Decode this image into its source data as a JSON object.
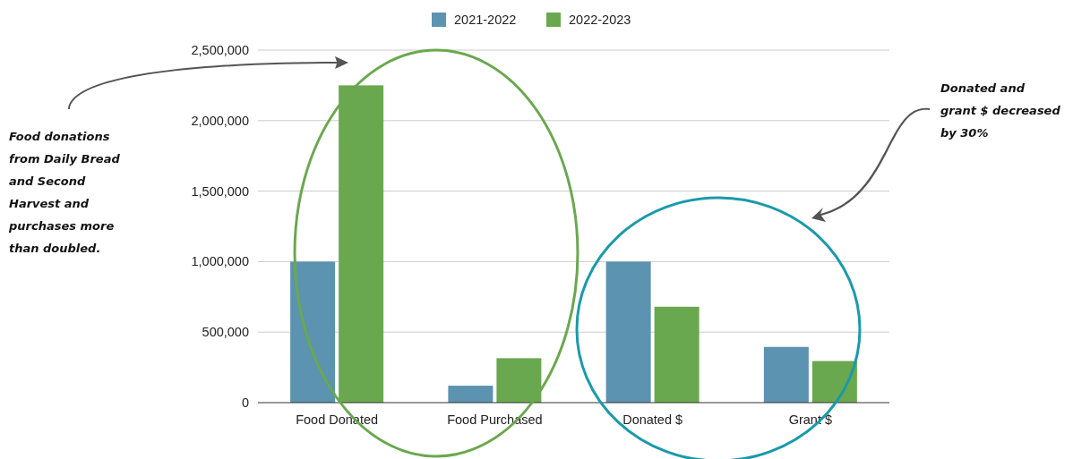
{
  "chart_data": {
    "type": "bar",
    "categories": [
      "Food Donated",
      "Food Purchased",
      "Donated $",
      "Grant $"
    ],
    "series": [
      {
        "name": "2021-2022",
        "color": "#5b93b0",
        "values": [
          1000000,
          120000,
          1000000,
          395000
        ]
      },
      {
        "name": "2022-2023",
        "color": "#6aa84f",
        "values": [
          2250000,
          315000,
          680000,
          295000
        ]
      }
    ],
    "ylim": [
      0,
      2500000
    ],
    "yticks": [
      0,
      {
        "value": 500000,
        "label": "500,000"
      },
      {
        "value": 1000000,
        "label": "1,000,000"
      },
      {
        "value": 1500000,
        "label": "1,500,000"
      },
      {
        "value": 2000000,
        "label": "2,000,000"
      },
      {
        "value": 2500000,
        "label": "2,500,000"
      }
    ],
    "grid": "y",
    "legend": "top",
    "annotations": [
      "Food donations from Daily Bread and Second Harvest and purchases more than doubled.",
      "Donated and grant $ decreased by 30%"
    ]
  }
}
